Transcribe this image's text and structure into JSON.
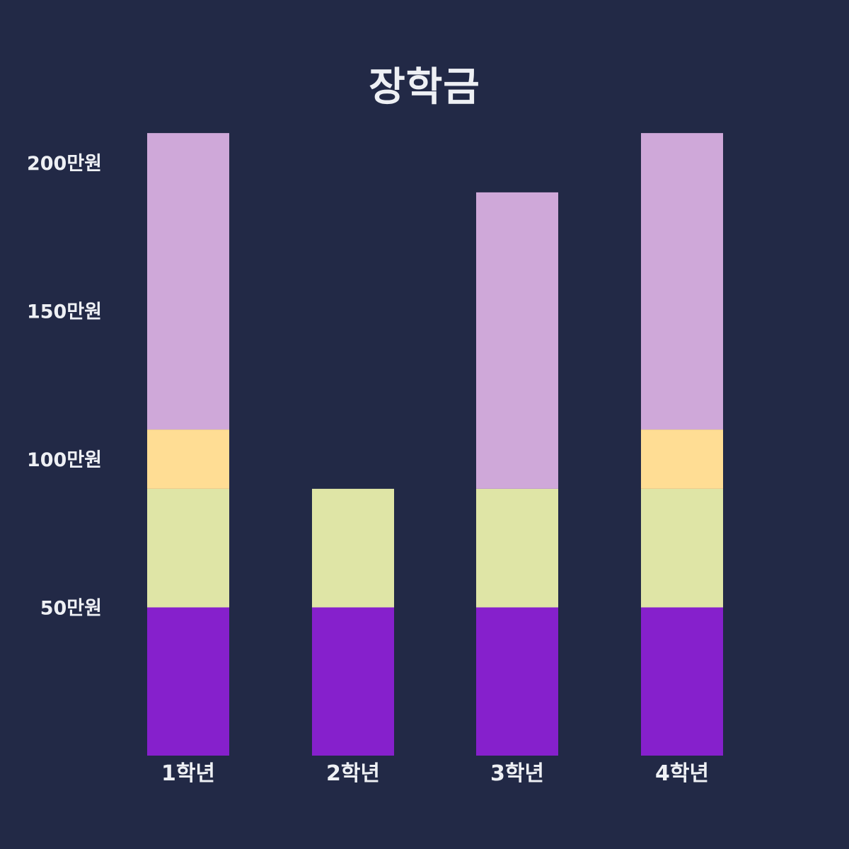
{
  "chart_data": {
    "type": "bar",
    "stacked": true,
    "title": "장학금",
    "xlabel": "",
    "ylabel": "",
    "categories": [
      "1학년",
      "2학년",
      "3학년",
      "4학년"
    ],
    "y_ticks": [
      {
        "value": 50,
        "label": "50만원"
      },
      {
        "value": 100,
        "label": "100만원"
      },
      {
        "value": 150,
        "label": "150만원"
      },
      {
        "value": 200,
        "label": "200만원"
      }
    ],
    "ylim": [
      0,
      210
    ],
    "grid": false,
    "legend": "none",
    "series": [
      {
        "color": "#8620cc",
        "values": [
          50,
          50,
          50,
          50
        ]
      },
      {
        "color": "#dfe5a6",
        "values": [
          40,
          40,
          40,
          40
        ]
      },
      {
        "color": "#ffdd94",
        "values": [
          20,
          0,
          0,
          20
        ]
      },
      {
        "color": "#cfa8d9",
        "values": [
          100,
          0,
          100,
          100
        ]
      }
    ]
  },
  "colors": {
    "background": "#222946",
    "text": "#eef0f4"
  }
}
